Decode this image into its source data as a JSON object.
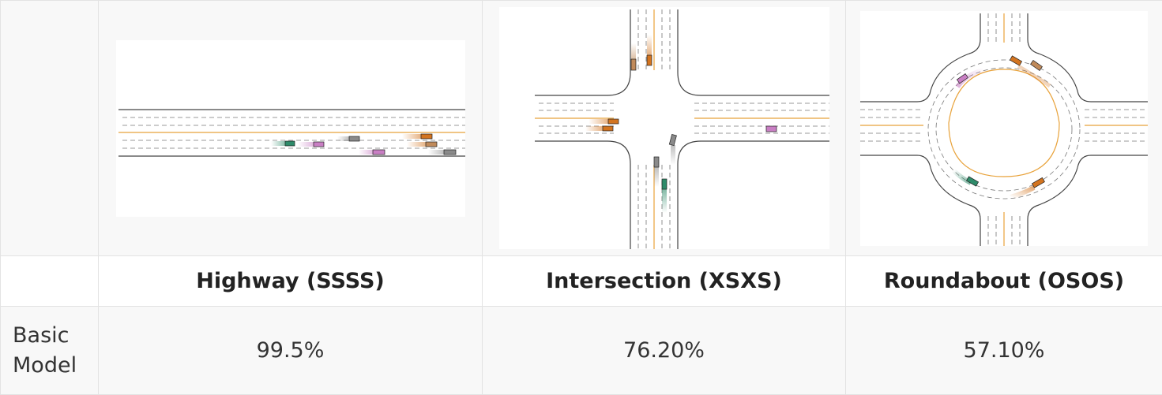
{
  "scenarios": [
    {
      "name": "Highway (SSSS)",
      "image_icon": "highway-scene"
    },
    {
      "name": "Intersection (XSXS)",
      "image_icon": "intersection-scene"
    },
    {
      "name": "Roundabout (OSOS)",
      "image_icon": "roundabout-scene"
    }
  ],
  "rows": [
    {
      "label": "Basic Model",
      "values": [
        "99.5%",
        "76.20%",
        "57.10%"
      ]
    }
  ],
  "colors": {
    "teal_car": "#2e8b6a",
    "pink_car": "#c97fc4",
    "orange_car": "#d3741f",
    "tan_car": "#c08a5a",
    "grey_car": "#8a8a8a",
    "center_line": "#e8a23a"
  }
}
